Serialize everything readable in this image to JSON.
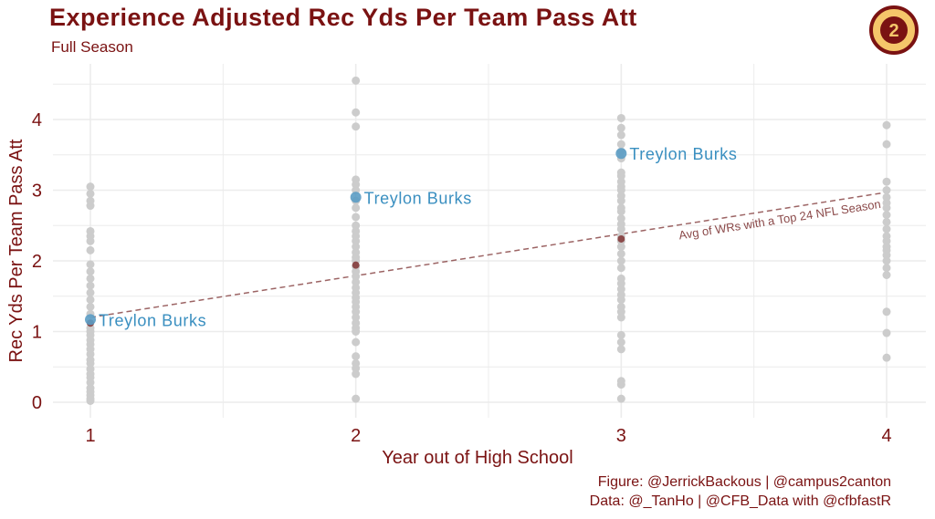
{
  "title": "Experience Adjusted Rec Yds Per Team Pass Att",
  "subtitle": "Full Season",
  "caption_line1": "Figure: @JerrickBackous | @campus2canton",
  "caption_line2": "Data: @_TanHo | @CFB_Data with @cfbfastR",
  "logo_text": "2",
  "colors": {
    "title": "#7a1212",
    "background_points": "#cccccc",
    "highlight": "#5b9cc4",
    "highlight_label": "#3a8fc0",
    "avg": "#8b4a4a",
    "grid": "#ececec"
  },
  "chart_data": {
    "type": "scatter",
    "xlabel": "Year out of High School",
    "ylabel": "Rec Yds Per Team Pass Att",
    "x_ticks": [
      "1",
      "2",
      "3",
      "4"
    ],
    "y_ticks": [
      "0",
      "1",
      "2",
      "3",
      "4"
    ],
    "xlim": [
      0.85,
      4.15
    ],
    "ylim": [
      -0.1,
      4.75
    ],
    "grid": true,
    "series": [
      {
        "role": "all_wrs",
        "points": [
          [
            1,
            0.02
          ],
          [
            1,
            0.05
          ],
          [
            1,
            0.1
          ],
          [
            1,
            0.15
          ],
          [
            1,
            0.2
          ],
          [
            1,
            0.28
          ],
          [
            1,
            0.35
          ],
          [
            1,
            0.4
          ],
          [
            1,
            0.47
          ],
          [
            1,
            0.55
          ],
          [
            1,
            0.6
          ],
          [
            1,
            0.68
          ],
          [
            1,
            0.75
          ],
          [
            1,
            0.82
          ],
          [
            1,
            0.88
          ],
          [
            1,
            0.95
          ],
          [
            1,
            1.0
          ],
          [
            1,
            1.05
          ],
          [
            1,
            1.25
          ],
          [
            1,
            1.35
          ],
          [
            1,
            1.45
          ],
          [
            1,
            1.55
          ],
          [
            1,
            1.65
          ],
          [
            1,
            1.75
          ],
          [
            1,
            1.85
          ],
          [
            1,
            1.95
          ],
          [
            1,
            2.15
          ],
          [
            1,
            2.28
          ],
          [
            1,
            2.35
          ],
          [
            1,
            2.42
          ],
          [
            1,
            2.78
          ],
          [
            1,
            2.85
          ],
          [
            1,
            2.95
          ],
          [
            1,
            3.05
          ],
          [
            2,
            0.05
          ],
          [
            2,
            0.4
          ],
          [
            2,
            0.48
          ],
          [
            2,
            0.55
          ],
          [
            2,
            0.65
          ],
          [
            2,
            0.85
          ],
          [
            2,
            1.0
          ],
          [
            2,
            1.05
          ],
          [
            2,
            1.12
          ],
          [
            2,
            1.2
          ],
          [
            2,
            1.28
          ],
          [
            2,
            1.35
          ],
          [
            2,
            1.42
          ],
          [
            2,
            1.48
          ],
          [
            2,
            1.55
          ],
          [
            2,
            1.62
          ],
          [
            2,
            1.7
          ],
          [
            2,
            1.78
          ],
          [
            2,
            1.85
          ],
          [
            2,
            1.92
          ],
          [
            2,
            2.0
          ],
          [
            2,
            2.05
          ],
          [
            2,
            2.12
          ],
          [
            2,
            2.2
          ],
          [
            2,
            2.28
          ],
          [
            2,
            2.35
          ],
          [
            2,
            2.42
          ],
          [
            2,
            2.5
          ],
          [
            2,
            2.62
          ],
          [
            2,
            2.75
          ],
          [
            2,
            2.85
          ],
          [
            2,
            3.0
          ],
          [
            2,
            3.08
          ],
          [
            2,
            3.15
          ],
          [
            2,
            3.9
          ],
          [
            2,
            4.1
          ],
          [
            2,
            4.55
          ],
          [
            3,
            0.05
          ],
          [
            3,
            0.25
          ],
          [
            3,
            0.3
          ],
          [
            3,
            0.75
          ],
          [
            3,
            0.85
          ],
          [
            3,
            0.95
          ],
          [
            3,
            1.2
          ],
          [
            3,
            1.28
          ],
          [
            3,
            1.35
          ],
          [
            3,
            1.45
          ],
          [
            3,
            1.52
          ],
          [
            3,
            1.6
          ],
          [
            3,
            1.68
          ],
          [
            3,
            1.75
          ],
          [
            3,
            1.9
          ],
          [
            3,
            2.0
          ],
          [
            3,
            2.1
          ],
          [
            3,
            2.2
          ],
          [
            3,
            2.28
          ],
          [
            3,
            2.35
          ],
          [
            3,
            2.45
          ],
          [
            3,
            2.52
          ],
          [
            3,
            2.6
          ],
          [
            3,
            2.7
          ],
          [
            3,
            2.75
          ],
          [
            3,
            2.85
          ],
          [
            3,
            2.92
          ],
          [
            3,
            3.0
          ],
          [
            3,
            3.05
          ],
          [
            3,
            3.12
          ],
          [
            3,
            3.2
          ],
          [
            3,
            3.25
          ],
          [
            3,
            3.45
          ],
          [
            3,
            3.55
          ],
          [
            3,
            3.65
          ],
          [
            3,
            3.78
          ],
          [
            3,
            3.88
          ],
          [
            3,
            4.02
          ],
          [
            4,
            0.63
          ],
          [
            4,
            0.98
          ],
          [
            4,
            1.28
          ],
          [
            4,
            1.8
          ],
          [
            4,
            1.9
          ],
          [
            4,
            2.0
          ],
          [
            4,
            2.08
          ],
          [
            4,
            2.15
          ],
          [
            4,
            2.2
          ],
          [
            4,
            2.28
          ],
          [
            4,
            2.35
          ],
          [
            4,
            2.45
          ],
          [
            4,
            2.55
          ],
          [
            4,
            2.65
          ],
          [
            4,
            2.75
          ],
          [
            4,
            2.82
          ],
          [
            4,
            2.9
          ],
          [
            4,
            3.0
          ],
          [
            4,
            3.12
          ],
          [
            4,
            3.65
          ],
          [
            4,
            3.92
          ]
        ]
      },
      {
        "role": "highlight",
        "name": "Treylon Burks",
        "points": [
          [
            1,
            1.17
          ],
          [
            2,
            2.9
          ],
          [
            3,
            3.52
          ]
        ]
      },
      {
        "role": "average",
        "name": "Avg of WRs with a Top 24 NFL Season",
        "points": [
          [
            1,
            1.12
          ],
          [
            2,
            1.94
          ],
          [
            3,
            2.31
          ]
        ],
        "trend_line": [
          [
            1,
            1.2
          ],
          [
            4,
            2.97
          ]
        ]
      }
    ]
  }
}
